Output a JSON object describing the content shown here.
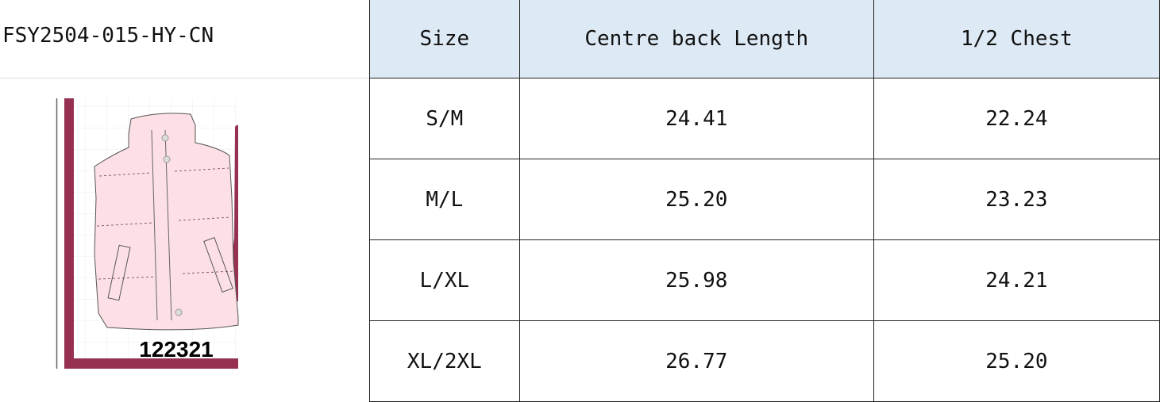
{
  "style_code": "FSY2504-015-HY-CN",
  "image": {
    "label": "122321",
    "frame_color": "#963152",
    "garment_color": "#fde0e5"
  },
  "table": {
    "headers": [
      "Size",
      "Centre back Length",
      "1/2 Chest"
    ],
    "rows": [
      [
        "S/M",
        "24.41",
        "22.24"
      ],
      [
        "M/L",
        "25.20",
        "23.23"
      ],
      [
        "L/XL",
        "25.98",
        "24.21"
      ],
      [
        "XL/2XL",
        "26.77",
        "25.20"
      ]
    ]
  }
}
